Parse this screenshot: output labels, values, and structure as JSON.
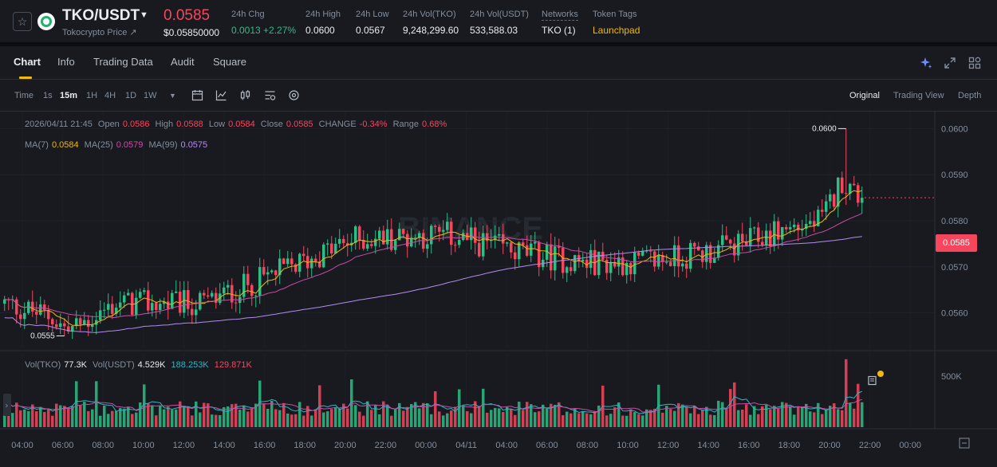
{
  "ticker": {
    "pair": "TKO/USDT",
    "subtitle": "Tokocrypto Price ↗",
    "last_price": "0.0585",
    "last_price_usd": "$0.05850000",
    "stats": [
      {
        "label": "24h Chg",
        "value": "0.0013 +2.27%"
      },
      {
        "label": "24h High",
        "value": "0.0600"
      },
      {
        "label": "24h Low",
        "value": "0.0567"
      },
      {
        "label": "24h Vol(TKO)",
        "value": "9,248,299.60"
      },
      {
        "label": "24h Vol(USDT)",
        "value": "533,588.03"
      },
      {
        "label": "Networks",
        "value": "TKO (1)"
      },
      {
        "label": "Token Tags",
        "value": "Launchpad"
      }
    ]
  },
  "tabs": [
    "Chart",
    "Info",
    "Trading Data",
    "Audit",
    "Square"
  ],
  "timeframes": [
    "Time",
    "1s",
    "15m",
    "1H",
    "4H",
    "1D",
    "1W"
  ],
  "active_timeframe": "15m",
  "views": [
    "Original",
    "Trading View",
    "Depth"
  ],
  "active_view": "Original",
  "legend": {
    "datetime": "2026/04/11 21:45",
    "open_label": "Open",
    "open": "0.0586",
    "high_label": "High",
    "high": "0.0588",
    "low_label": "Low",
    "low": "0.0584",
    "close_label": "Close",
    "close": "0.0585",
    "change_label": "CHANGE",
    "change": "-0.34%",
    "range_label": "Range",
    "range": "0.68%",
    "ma7_label": "MA(7)",
    "ma7": "0.0584",
    "ma25_label": "MA(25)",
    "ma25": "0.0579",
    "ma99_label": "MA(99)",
    "ma99": "0.0575",
    "vol_tko_label": "Vol(TKO)",
    "vol_tko": "77.3K",
    "vol_usdt_label": "Vol(USDT)",
    "vol_usdt": "4.529K",
    "vol_ma1": "188.253K",
    "vol_ma2": "129.871K"
  },
  "current_price_tag": "0.0585",
  "colors": {
    "up": "#2ebd85",
    "down": "#f6465d",
    "ma7": "#f0b90b",
    "ma25": "#c84da6",
    "ma99": "#b48cf0",
    "accent": "#f0b90b"
  },
  "chart_data": {
    "type": "candlestick",
    "price_axis": {
      "ticks": [
        "0.0600",
        "0.0590",
        "0.0580",
        "0.0570",
        "0.0560"
      ],
      "ylim": [
        0.05518,
        0.06037
      ]
    },
    "volume_axis": {
      "ticks": [
        "500K"
      ]
    },
    "time_axis": [
      "04:00",
      "06:00",
      "08:00",
      "10:00",
      "12:00",
      "14:00",
      "16:00",
      "18:00",
      "20:00",
      "22:00",
      "00:00",
      "04/11",
      "04:00",
      "06:00",
      "08:00",
      "10:00",
      "12:00",
      "14:00",
      "16:00",
      "18:00",
      "20:00",
      "22:00",
      "00:00"
    ],
    "annotations": {
      "high": "0.0600",
      "low": "0.0555"
    },
    "high_value": 0.06,
    "low_value": 0.0555,
    "last_close": 0.0585,
    "ma7_last": 0.0584,
    "ma25_last": 0.0579,
    "ma99_last": 0.0575
  }
}
